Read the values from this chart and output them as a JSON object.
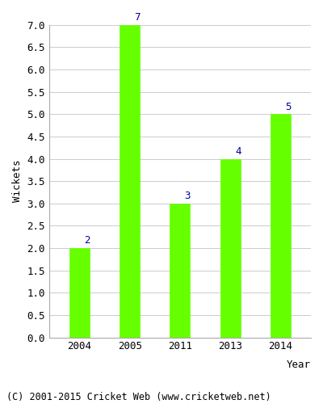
{
  "categories": [
    "2004",
    "2005",
    "2011",
    "2013",
    "2014"
  ],
  "values": [
    2,
    7,
    3,
    4,
    5
  ],
  "bar_color": "#66ff00",
  "bar_edge_color": "#66ff00",
  "label_color": "#000099",
  "xlabel": "Year",
  "ylabel": "Wickets",
  "ylim": [
    0.0,
    7.0
  ],
  "yticks": [
    0.0,
    0.5,
    1.0,
    1.5,
    2.0,
    2.5,
    3.0,
    3.5,
    4.0,
    4.5,
    5.0,
    5.5,
    6.0,
    6.5,
    7.0
  ],
  "title": "",
  "footer": "(C) 2001-2015 Cricket Web (www.cricketweb.net)",
  "background_color": "#ffffff",
  "grid_color": "#cccccc",
  "label_fontsize": 9,
  "axis_fontsize": 9,
  "footer_fontsize": 8.5
}
